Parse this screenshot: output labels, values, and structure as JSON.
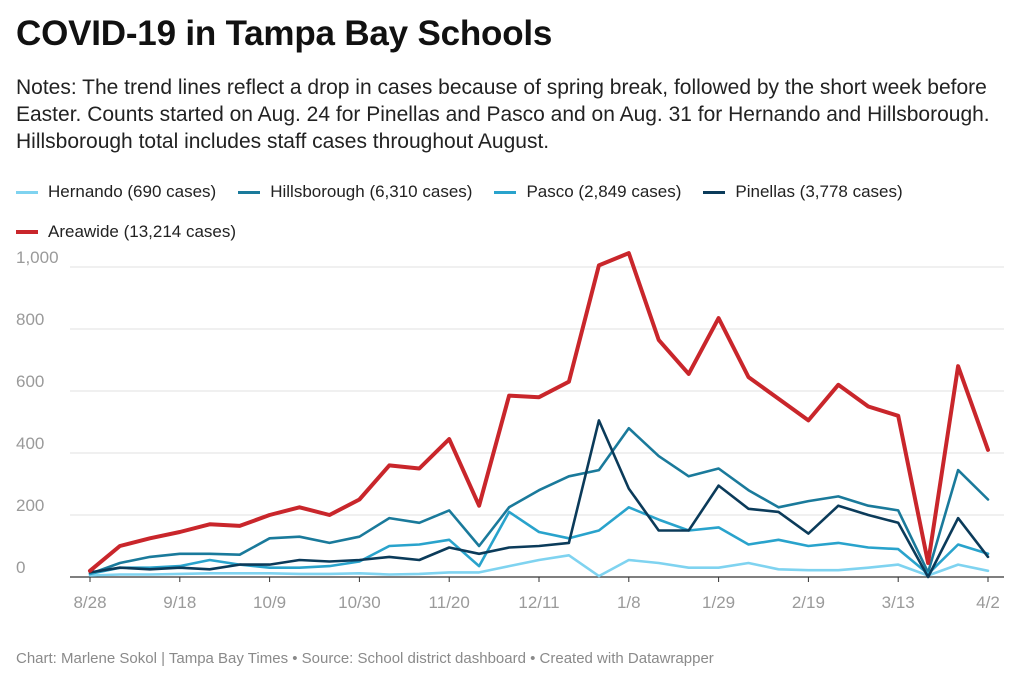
{
  "header": {
    "title": "COVID-19 in Tampa Bay Schools",
    "notes": "Notes: The trend lines reflect a drop in cases because of spring break, followed by the short week before Easter. Counts started on Aug. 24 for Pinellas and Pasco and on Aug. 31 for Hernando and Hillsborough. Hillsborough total includes staff cases throughout August."
  },
  "footer": {
    "credit": "Chart: Marlene Sokol | Tampa Bay Times • Source: School district dashboard • Created with Datawrapper"
  },
  "chart_data": {
    "type": "line",
    "title": "COVID-19 in Tampa Bay Schools",
    "xlabel": "",
    "ylabel": "",
    "ylim": [
      0,
      1000
    ],
    "yticks": [
      0,
      200,
      400,
      600,
      800,
      1000
    ],
    "ytick_labels": [
      "0",
      "200",
      "400",
      "600",
      "800",
      "1,000"
    ],
    "xticks": [
      "8/28",
      "9/18",
      "10/9",
      "10/30",
      "11/20",
      "12/11",
      "1/8",
      "1/29",
      "2/19",
      "3/13",
      "4/2"
    ],
    "grid": true,
    "legend_position": "top-left",
    "x": [
      "8/28",
      "9/4",
      "9/11",
      "9/18",
      "9/25",
      "10/2",
      "10/9",
      "10/16",
      "10/23",
      "10/30",
      "11/6",
      "11/13",
      "11/20",
      "11/27",
      "12/4",
      "12/11",
      "12/18",
      "1/1",
      "1/8",
      "1/15",
      "1/22",
      "1/29",
      "2/5",
      "2/12",
      "2/19",
      "2/26",
      "3/5",
      "3/13",
      "3/19",
      "3/26",
      "4/2"
    ],
    "series": [
      {
        "name": "Hernando (690 cases)",
        "color": "#7fd3f0",
        "values": [
          5,
          8,
          8,
          10,
          12,
          12,
          12,
          10,
          10,
          12,
          8,
          10,
          15,
          15,
          35,
          55,
          70,
          3,
          55,
          45,
          30,
          30,
          45,
          25,
          22,
          22,
          30,
          40,
          5,
          40,
          20
        ]
      },
      {
        "name": "Hillsborough (6,310 cases)",
        "color": "#1a7a9b",
        "values": [
          10,
          45,
          65,
          75,
          75,
          72,
          125,
          130,
          110,
          130,
          190,
          175,
          215,
          100,
          225,
          280,
          325,
          345,
          480,
          390,
          325,
          350,
          280,
          225,
          245,
          260,
          230,
          215,
          15,
          345,
          250
        ]
      },
      {
        "name": "Pasco (2,849 cases)",
        "color": "#29a3cc",
        "values": [
          10,
          30,
          30,
          35,
          55,
          40,
          30,
          30,
          35,
          50,
          100,
          105,
          120,
          35,
          210,
          145,
          125,
          150,
          225,
          185,
          150,
          160,
          105,
          120,
          100,
          110,
          95,
          90,
          10,
          105,
          75
        ]
      },
      {
        "name": "Pinellas (3,778 cases)",
        "color": "#0b3b5a",
        "values": [
          15,
          30,
          25,
          30,
          25,
          40,
          40,
          55,
          50,
          55,
          65,
          55,
          95,
          75,
          95,
          100,
          110,
          505,
          285,
          150,
          150,
          295,
          220,
          210,
          140,
          230,
          200,
          175,
          0,
          190,
          65
        ]
      },
      {
        "name": "Areawide (13,214 cases)",
        "color": "#c9262b",
        "values": [
          20,
          100,
          125,
          145,
          170,
          165,
          200,
          225,
          200,
          250,
          360,
          350,
          445,
          230,
          585,
          580,
          630,
          1005,
          1045,
          765,
          655,
          835,
          645,
          575,
          505,
          620,
          550,
          520,
          45,
          680,
          410
        ]
      }
    ]
  }
}
